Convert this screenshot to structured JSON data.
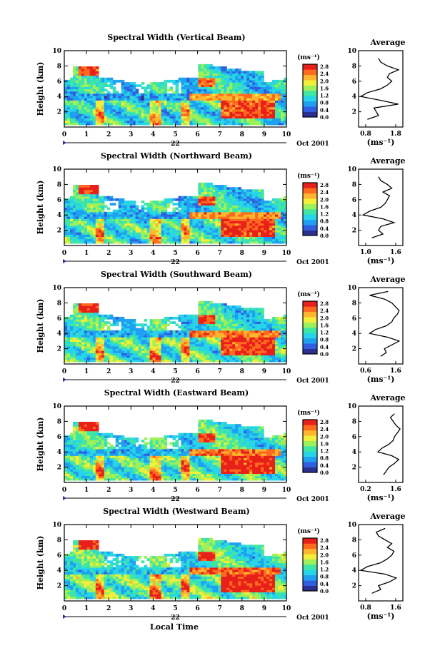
{
  "chart_data": [
    {
      "type": "heatmap",
      "title": "Spectral Width (Vertical Beam)",
      "ylabel": "Height (km)",
      "xlabel": "",
      "xlim": [
        0,
        10
      ],
      "ylim": [
        0,
        10
      ],
      "xticks": [
        "0",
        "1",
        "2",
        "3",
        "4",
        "5",
        "6",
        "7",
        "8",
        "9",
        "10"
      ],
      "yticks": [
        "2",
        "4",
        "6",
        "8",
        "10"
      ],
      "date_center": "22",
      "date_right": "Oct 2001",
      "unit_label": "(ms⁻¹)",
      "colorbar_ticks": [
        "2.8",
        "2.4",
        "2.0",
        "1.6",
        "1.2",
        "0.8",
        "0.4",
        "0.0"
      ],
      "colorbar_range": [
        0,
        2.8
      ],
      "average_profile": {
        "title": "Average",
        "xlabel": "(ms⁻¹)",
        "xticks": [
          "0.8",
          "1.8"
        ],
        "xlim": [
          0.8,
          1.8
        ],
        "ylim": [
          0,
          10
        ],
        "yticks": [
          "2",
          "4",
          "6",
          "8",
          "10"
        ],
        "heights": [
          1,
          1.5,
          2,
          2.5,
          3,
          3.5,
          4,
          4.5,
          5,
          5.5,
          6,
          6.5,
          7,
          7.5,
          8,
          8.5,
          9
        ],
        "values": [
          1.0,
          1.25,
          1.2,
          1.15,
          1.7,
          1.3,
          0.85,
          1.0,
          1.3,
          1.45,
          1.55,
          1.45,
          1.5,
          1.7,
          1.45,
          1.3,
          1.25
        ]
      }
    },
    {
      "type": "heatmap",
      "title": "Spectral Width (Northward Beam)",
      "ylabel": "Height (km)",
      "xlabel": "",
      "xlim": [
        0,
        10
      ],
      "ylim": [
        0,
        10
      ],
      "xticks": [
        "0",
        "1",
        "2",
        "3",
        "4",
        "5",
        "6",
        "7",
        "8",
        "9",
        "10"
      ],
      "yticks": [
        "2",
        "4",
        "6",
        "8",
        "10"
      ],
      "date_center": "22",
      "date_right": "Oct 2001",
      "unit_label": "(ms⁻¹)",
      "colorbar_ticks": [
        "2.8",
        "2.4",
        "2.0",
        "1.6",
        "1.2",
        "0.8",
        "0.4",
        "0.0"
      ],
      "colorbar_range": [
        0,
        2.8
      ],
      "average_profile": {
        "title": "Average",
        "xlabel": "(ms⁻¹)",
        "xticks": [
          "1.0",
          "1.6"
        ],
        "xlim": [
          0.8,
          1.8
        ],
        "ylim": [
          0,
          10
        ],
        "yticks": [
          "2",
          "4",
          "6",
          "8",
          "10"
        ],
        "heights": [
          1,
          1.5,
          2,
          2.5,
          3,
          3.5,
          4,
          4.5,
          5,
          5.5,
          6,
          6.5,
          7,
          7.5,
          8,
          8.5,
          9
        ],
        "values": [
          1.1,
          1.35,
          1.25,
          1.3,
          1.6,
          1.35,
          0.9,
          1.05,
          1.3,
          1.4,
          1.45,
          1.5,
          1.35,
          1.55,
          1.45,
          1.3,
          1.25
        ]
      }
    },
    {
      "type": "heatmap",
      "title": "Spectral Width (Southward Beam)",
      "ylabel": "Height (km)",
      "xlabel": "",
      "xlim": [
        0,
        10
      ],
      "ylim": [
        0,
        10
      ],
      "xticks": [
        "0",
        "1",
        "2",
        "3",
        "4",
        "5",
        "6",
        "7",
        "8",
        "9",
        "10"
      ],
      "yticks": [
        "2",
        "4",
        "6",
        "8",
        "10"
      ],
      "date_center": "22",
      "date_right": "Oct 2001",
      "unit_label": "(ms⁻¹)",
      "colorbar_ticks": [
        "2.8",
        "2.4",
        "2.0",
        "1.6",
        "1.2",
        "0.8",
        "0.4",
        "0.0"
      ],
      "colorbar_range": [
        0,
        2.8
      ],
      "average_profile": {
        "title": "Average",
        "xlabel": "(ms⁻¹)",
        "xticks": [
          "0.6",
          "1.6"
        ],
        "xlim": [
          0.6,
          1.8
        ],
        "ylim": [
          0,
          10
        ],
        "yticks": [
          "2",
          "4",
          "6",
          "8",
          "10"
        ],
        "heights": [
          1,
          1.5,
          2,
          2.5,
          3,
          3.5,
          4,
          4.5,
          5,
          5.5,
          6,
          6.5,
          7,
          7.5,
          8,
          8.5,
          9,
          9.5
        ],
        "values": [
          1.2,
          1.35,
          1.3,
          1.5,
          1.7,
          1.4,
          0.9,
          1.05,
          1.35,
          1.5,
          1.55,
          1.65,
          1.7,
          1.6,
          1.5,
          1.3,
          0.9,
          1.4
        ]
      }
    },
    {
      "type": "heatmap",
      "title": "Spectral Width (Eastward Beam)",
      "ylabel": "Height (km)",
      "xlabel": "",
      "xlim": [
        0,
        10
      ],
      "ylim": [
        0,
        10
      ],
      "xticks": [
        "0",
        "1",
        "2",
        "3",
        "4",
        "5",
        "6",
        "7",
        "8",
        "9",
        "10"
      ],
      "yticks": [
        "2",
        "4",
        "6",
        "8",
        "10"
      ],
      "date_center": "22",
      "date_right": "Oct 2001",
      "unit_label": "(ms⁻¹)",
      "colorbar_ticks": [
        "2.8",
        "2.4",
        "2.0",
        "1.6",
        "1.2",
        "0.8",
        "0.4",
        "0.0"
      ],
      "colorbar_range": [
        0,
        2.8
      ],
      "average_profile": {
        "title": "Average",
        "xlabel": "(ms⁻¹)",
        "xticks": [
          "0.2",
          "1.6"
        ],
        "xlim": [
          0.2,
          1.8
        ],
        "ylim": [
          0,
          10
        ],
        "yticks": [
          "2",
          "4",
          "6",
          "8",
          "10"
        ],
        "heights": [
          1,
          1.5,
          2,
          2.5,
          3,
          3.5,
          4,
          4.5,
          5,
          5.5,
          6,
          6.5,
          7,
          7.5,
          8,
          8.5,
          9
        ],
        "values": [
          1.1,
          1.2,
          1.3,
          1.5,
          1.65,
          1.4,
          0.9,
          1.05,
          1.3,
          1.45,
          1.5,
          1.6,
          1.7,
          1.55,
          1.45,
          1.35,
          1.5
        ]
      }
    },
    {
      "type": "heatmap",
      "title": "Spectral Width (Westward Beam)",
      "ylabel": "Height (km)",
      "xlabel": "Local Time",
      "xlim": [
        0,
        10
      ],
      "ylim": [
        0,
        10
      ],
      "xticks": [
        "0",
        "1",
        "2",
        "3",
        "4",
        "5",
        "6",
        "7",
        "8",
        "9",
        "10"
      ],
      "yticks": [
        "2",
        "4",
        "6",
        "8",
        "10"
      ],
      "date_center": "22",
      "date_right": "Oct 2001",
      "unit_label": "(ms⁻¹)",
      "colorbar_ticks": [
        "2.8",
        "2.4",
        "2.0",
        "1.6",
        "1.2",
        "0.8",
        "0.4",
        "0.0"
      ],
      "colorbar_range": [
        0,
        2.8
      ],
      "average_profile": {
        "title": "Average",
        "xlabel": "(ms⁻¹)",
        "xticks": [
          "0.8",
          "1.6"
        ],
        "xlim": [
          0.8,
          1.8
        ],
        "ylim": [
          0,
          10
        ],
        "yticks": [
          "2",
          "4",
          "6",
          "8",
          "10"
        ],
        "heights": [
          1,
          1.5,
          2,
          2.5,
          3,
          3.5,
          4,
          4.5,
          5,
          5.5,
          6,
          6.5,
          7,
          7.5,
          8,
          8.5,
          9,
          9.5
        ],
        "values": [
          1.1,
          1.3,
          1.25,
          1.5,
          1.65,
          1.4,
          0.85,
          1.0,
          1.3,
          1.45,
          1.55,
          1.6,
          1.45,
          1.55,
          1.4,
          1.25,
          1.2,
          1.4
        ]
      }
    }
  ],
  "colormap": [
    "#2b2f8f",
    "#2f5fe0",
    "#1fa0f0",
    "#28d4e8",
    "#3fe6a4",
    "#9ef05a",
    "#f2ee3a",
    "#ffb52e",
    "#ff6a1e",
    "#e8201a"
  ]
}
